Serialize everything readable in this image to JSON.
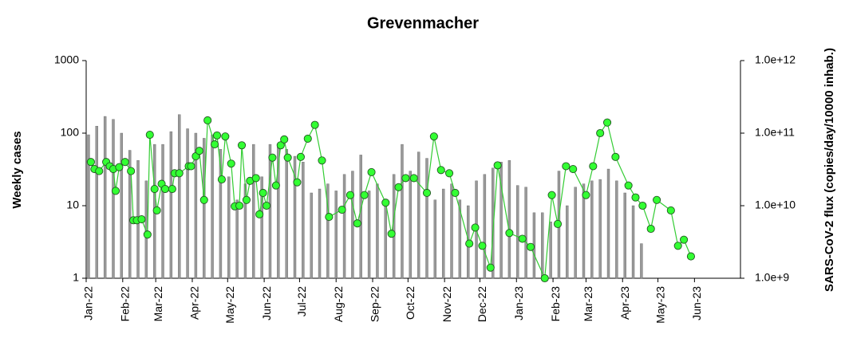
{
  "chart_data": {
    "type": "combo",
    "title": "Grevenmacher",
    "y_label": "Weekly cases",
    "y2_label": "SARS-CoV-2 flux (copies/day/10000 inhab.)",
    "log_y": true,
    "log_y2": true,
    "xlim": [
      0,
      555
    ],
    "xticks": [
      {
        "value": 0,
        "label": "Jan-22"
      },
      {
        "value": 31,
        "label": "Feb-22"
      },
      {
        "value": 59,
        "label": "Mar-22"
      },
      {
        "value": 90,
        "label": "Apr-22"
      },
      {
        "value": 120,
        "label": "May-22"
      },
      {
        "value": 151,
        "label": "Jun-22"
      },
      {
        "value": 181,
        "label": "Jul-22"
      },
      {
        "value": 212,
        "label": "Aug-22"
      },
      {
        "value": 243,
        "label": "Sep-22"
      },
      {
        "value": 273,
        "label": "Oct-22"
      },
      {
        "value": 304,
        "label": "Nov-22"
      },
      {
        "value": 334,
        "label": "Dec-22"
      },
      {
        "value": 365,
        "label": "Jan-23"
      },
      {
        "value": 396,
        "label": "Feb-23"
      },
      {
        "value": 424,
        "label": "Mar-23"
      },
      {
        "value": 455,
        "label": "Apr-23"
      },
      {
        "value": 485,
        "label": "May-23"
      },
      {
        "value": 516,
        "label": "Jun-23"
      }
    ],
    "ylim": [
      1,
      1000
    ],
    "yticks": [
      1,
      10,
      100,
      1000
    ],
    "y2lim": [
      1000000000,
      1000000000000
    ],
    "y2ticks": [
      {
        "value": 1000000000,
        "label": "1.0e+9"
      },
      {
        "value": 10000000000,
        "label": "1.0e+10"
      },
      {
        "value": 100000000000,
        "label": "1.0e+11"
      },
      {
        "value": 1000000000000,
        "label": "1.0e+12"
      }
    ],
    "series": [
      {
        "type": "bar",
        "color": "#999999",
        "x": [
          2,
          9,
          16,
          23,
          30,
          37,
          44,
          51,
          58,
          65,
          72,
          79,
          86,
          93,
          100,
          107,
          114,
          121,
          128,
          135,
          142,
          149,
          156,
          163,
          170,
          177,
          184,
          191,
          198,
          205,
          212,
          219,
          226,
          233,
          240,
          247,
          254,
          261,
          268,
          275,
          282,
          289,
          296,
          303,
          310,
          317,
          324,
          331,
          338,
          345,
          352,
          359,
          366,
          373,
          380,
          387,
          394,
          401,
          408,
          415,
          422,
          429,
          436,
          443,
          450,
          457,
          464,
          471
        ],
        "values": [
          95,
          125,
          170,
          155,
          100,
          58,
          42,
          22,
          70,
          70,
          105,
          180,
          115,
          100,
          85,
          95,
          60,
          25,
          12,
          20,
          70,
          25,
          70,
          65,
          60,
          48,
          40,
          15,
          17,
          20,
          16,
          27,
          30,
          50,
          16,
          20,
          10,
          27,
          70,
          30,
          55,
          45,
          12,
          17,
          20,
          12,
          10,
          22,
          27,
          33,
          40,
          42,
          19,
          18,
          8,
          8,
          6,
          30,
          10,
          18,
          20,
          22,
          23,
          32,
          22,
          15,
          10,
          3
        ]
      },
      {
        "type": "line",
        "axis": "y2",
        "color": "#33cc33",
        "marker_color": "#33ff33",
        "x": [
          4,
          7,
          11,
          17,
          20,
          23,
          25,
          28,
          33,
          38,
          40,
          43,
          47,
          52,
          54,
          58,
          60,
          64,
          67,
          73,
          75,
          79,
          87,
          89,
          93,
          96,
          100,
          103,
          109,
          111,
          115,
          118,
          123,
          126,
          130,
          132,
          136,
          139,
          144,
          147,
          150,
          153,
          158,
          161,
          165,
          168,
          171,
          179,
          182,
          188,
          194,
          200,
          206,
          217,
          224,
          230,
          236,
          242,
          254,
          259,
          265,
          271,
          278,
          289,
          295,
          301,
          308,
          313,
          325,
          330,
          336,
          343,
          349,
          359,
          370,
          377,
          389,
          395,
          400,
          407,
          413,
          424,
          430,
          436,
          442,
          449,
          460,
          466,
          472,
          479,
          484,
          496,
          502,
          507,
          513
        ],
        "values": [
          40000000000.0,
          32000000000.0,
          30000000000.0,
          40000000000.0,
          35000000000.0,
          32000000000.0,
          16000000000.0,
          34000000000.0,
          40000000000.0,
          30000000000.0,
          6300000000.0,
          6300000000.0,
          6500000000.0,
          4000000000.0,
          95000000000.0,
          17000000000.0,
          8600000000.0,
          20000000000.0,
          17000000000.0,
          17000000000.0,
          28000000000.0,
          28000000000.0,
          35000000000.0,
          35000000000.0,
          48000000000.0,
          57000000000.0,
          12000000000.0,
          150000000000.0,
          70000000000.0,
          93000000000.0,
          23000000000.0,
          90000000000.0,
          38000000000.0,
          9800000000.0,
          10000000000.0,
          68000000000.0,
          12000000000.0,
          22000000000.0,
          24000000000.0,
          7600000000.0,
          15000000000.0,
          10000000000.0,
          46000000000.0,
          19000000000.0,
          68000000000.0,
          82000000000.0,
          46000000000.0,
          21000000000.0,
          47000000000.0,
          84000000000.0,
          130000000000.0,
          42000000000.0,
          7000000000.0,
          8800000000.0,
          14000000000.0,
          5700000000.0,
          14000000000.0,
          29000000000.0,
          11000000000.0,
          4100000000.0,
          18000000000.0,
          24000000000.0,
          24000000000.0,
          15000000000.0,
          90000000000.0,
          31000000000.0,
          28000000000.0,
          15000000000.0,
          3000000000.0,
          5000000000.0,
          2800000000.0,
          1400000000.0,
          36000000000.0,
          4200000000.0,
          3500000000.0,
          2700000000.0,
          1000000000.0,
          14000000000.0,
          5600000000.0,
          35000000000.0,
          32000000000.0,
          14000000000.0,
          35000000000.0,
          100000000000.0,
          140000000000.0,
          47000000000.0,
          19000000000.0,
          13000000000.0,
          10000000000.0,
          4800000000.0,
          12000000000.0,
          8600000000.0,
          2800000000.0,
          3400000000.0,
          2000000000.0
        ]
      }
    ]
  }
}
